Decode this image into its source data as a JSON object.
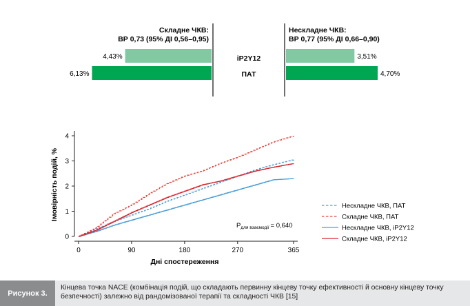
{
  "chart_data": [
    {
      "type": "bar",
      "orientation": "horizontal-butterfly",
      "categories": [
        "iP2Y12",
        "ПАТ"
      ],
      "panels": [
        {
          "title": "Складне ЧКВ:",
          "subtitle": "ВР 0,73 (95% ДІ 0,56–0,95)",
          "values": [
            4.43,
            6.13
          ],
          "value_labels": [
            "4,43%",
            "6,13%"
          ],
          "side": "left"
        },
        {
          "title": "Нескладне ЧКВ:",
          "subtitle": "ВР 0,77 (95% ДІ 0,66–0,90)",
          "values": [
            3.51,
            4.7
          ],
          "value_labels": [
            "3,51%",
            "4,70%"
          ],
          "side": "right"
        }
      ],
      "colors": {
        "iP2Y12": "#80c9a2",
        "ПАТ": "#00a651"
      }
    },
    {
      "type": "line",
      "xlabel": "Дні спостереження",
      "ylabel": "Імовірність подій, %",
      "xlim": [
        0,
        365
      ],
      "ylim": [
        0,
        4
      ],
      "xticks": [
        0,
        90,
        180,
        270,
        365
      ],
      "yticks": [
        0,
        1,
        2,
        3,
        4
      ],
      "annotation": {
        "main": "P",
        "sub": "для взаємодії",
        "value": "= 0,640"
      },
      "legend_position": "right",
      "series": [
        {
          "name": "Нескладне ЧКВ, ПАТ",
          "color": "#4a9ed8",
          "style": "dashed",
          "x": [
            0,
            30,
            60,
            90,
            120,
            150,
            180,
            210,
            240,
            270,
            300,
            330,
            365
          ],
          "y": [
            0,
            0.3,
            0.6,
            0.85,
            1.1,
            1.4,
            1.65,
            1.9,
            2.15,
            2.4,
            2.65,
            2.85,
            3.05
          ]
        },
        {
          "name": "Складне ЧКВ, ПАТ",
          "color": "#e8433a",
          "style": "dashed",
          "x": [
            0,
            30,
            60,
            90,
            120,
            150,
            180,
            210,
            240,
            270,
            300,
            330,
            365
          ],
          "y": [
            0,
            0.35,
            0.9,
            1.25,
            1.7,
            2.1,
            2.4,
            2.6,
            2.9,
            3.15,
            3.45,
            3.75,
            4.0
          ]
        },
        {
          "name": "Нескладне ЧКВ, iP2Y12",
          "color": "#4a9ed8",
          "style": "solid",
          "x": [
            0,
            30,
            60,
            90,
            120,
            150,
            180,
            210,
            240,
            270,
            300,
            330,
            365
          ],
          "y": [
            0,
            0.2,
            0.45,
            0.65,
            0.85,
            1.05,
            1.25,
            1.45,
            1.65,
            1.85,
            2.05,
            2.25,
            2.3
          ]
        },
        {
          "name": "Складне ЧКВ, iP2Y12",
          "color": "#d7262e",
          "style": "solid",
          "x": [
            0,
            30,
            60,
            90,
            120,
            150,
            180,
            210,
            240,
            270,
            300,
            330,
            365
          ],
          "y": [
            0,
            0.25,
            0.6,
            0.95,
            1.25,
            1.55,
            1.8,
            2.05,
            2.2,
            2.4,
            2.6,
            2.75,
            2.9
          ]
        }
      ]
    }
  ],
  "caption": {
    "label": "Рисунок 3.",
    "text": "Кінцева точка NACE (комбінація подій, що складають первинну кінцеву точку ефективності й основну кінцеву точку безпечності) залежно від рандомізованої терапії та складності ЧКВ [15]"
  }
}
